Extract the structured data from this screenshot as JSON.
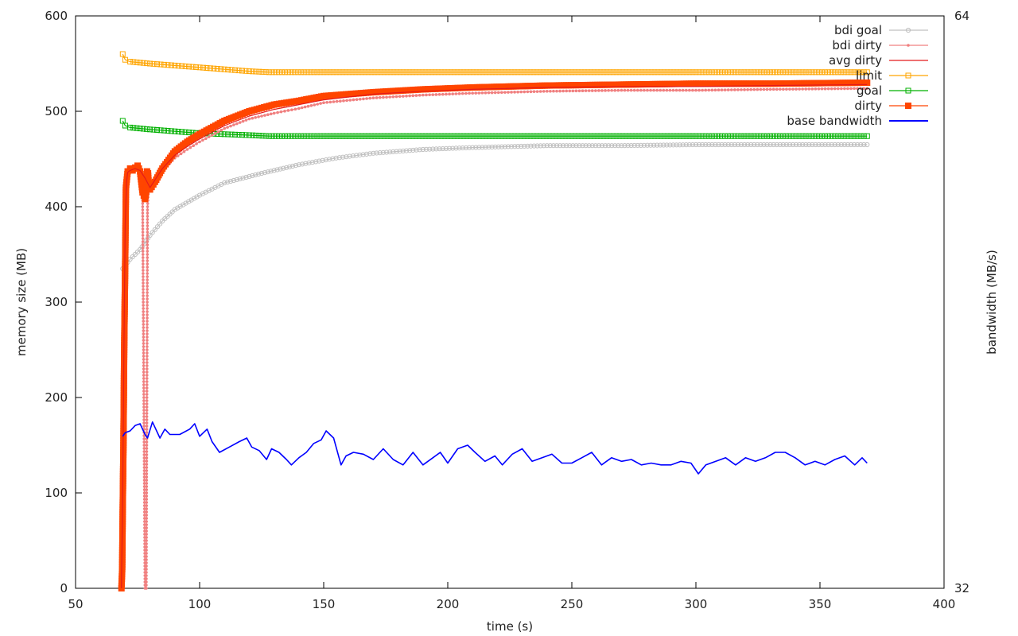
{
  "chart_data": {
    "type": "line",
    "xlabel": "time (s)",
    "ylabel": "memory size (MB)",
    "y2label": "bandwidth (MB/s)",
    "xlim": [
      50,
      400
    ],
    "ylim": [
      0,
      600
    ],
    "y2lim": [
      32,
      64
    ],
    "x_ticks": [
      "50",
      "100",
      "150",
      "200",
      "250",
      "300",
      "350",
      "400"
    ],
    "y_ticks": [
      "0",
      "100",
      "200",
      "300",
      "400",
      "500",
      "600"
    ],
    "y2_ticks": [
      "32",
      "64"
    ],
    "grid": false,
    "legend_position": "top-right",
    "series": [
      {
        "name": "bdi goal",
        "color": "#c0c0c0",
        "marker": "circle",
        "x": [
          69,
          72,
          76,
          80,
          85,
          90,
          100,
          110,
          125,
          140,
          155,
          170,
          190,
          210,
          240,
          270,
          300,
          330,
          369
        ],
        "y": [
          335,
          345,
          355,
          370,
          385,
          397,
          412,
          425,
          435,
          444,
          451,
          456,
          460,
          462,
          464,
          464,
          465,
          465,
          465
        ]
      },
      {
        "name": "bdi dirty",
        "color": "#f08080",
        "marker": "dot",
        "x": [
          68.5,
          69,
          69.5,
          70,
          70.5,
          71,
          72,
          74,
          76,
          77,
          78,
          78.5,
          79,
          79.5,
          80,
          82,
          85,
          90,
          95,
          100,
          110,
          120,
          130,
          140,
          150,
          170,
          190,
          210,
          240,
          270,
          300,
          330,
          369
        ],
        "y": [
          0,
          80,
          200,
          330,
          420,
          435,
          437,
          438,
          436,
          420,
          0,
          0,
          400,
          420,
          418,
          426,
          437,
          451,
          460,
          468,
          482,
          492,
          498,
          503,
          509,
          514,
          517,
          519,
          521,
          522,
          522,
          523,
          524
        ]
      },
      {
        "name": "avg dirty",
        "color": "#e31a1c",
        "marker": "none",
        "x": [
          68.5,
          69,
          69.5,
          70,
          70.5,
          71,
          72,
          74,
          76,
          78,
          80,
          82,
          85,
          90,
          95,
          100,
          110,
          120,
          130,
          140,
          150,
          170,
          190,
          210,
          240,
          270,
          300,
          330,
          369
        ],
        "y": [
          0,
          100,
          250,
          380,
          425,
          436,
          438,
          440,
          438,
          430,
          420,
          428,
          440,
          454,
          463,
          471,
          485,
          495,
          502,
          507,
          512,
          518,
          521,
          523,
          525,
          526,
          526,
          527,
          528
        ]
      },
      {
        "name": "limit",
        "color": "#ffa500",
        "marker": "square-open",
        "x": [
          69,
          70,
          72,
          80,
          90,
          100,
          110,
          120,
          128,
          150,
          200,
          250,
          300,
          369
        ],
        "y": [
          560,
          554,
          552,
          550,
          548,
          546,
          544,
          542,
          541,
          541,
          541,
          541,
          541,
          541
        ]
      },
      {
        "name": "goal",
        "color": "#00b000",
        "marker": "square-open",
        "x": [
          69,
          70,
          72,
          80,
          90,
          100,
          110,
          120,
          128,
          150,
          200,
          250,
          300,
          369
        ],
        "y": [
          490,
          485,
          483,
          481,
          479,
          477,
          476,
          475,
          474,
          474,
          474,
          474,
          474,
          474
        ]
      },
      {
        "name": "dirty",
        "color": "#ff4500",
        "marker": "square-filled",
        "x": [
          68.5,
          68.8,
          69,
          69.3,
          69.6,
          70,
          70.3,
          71,
          72,
          73,
          74,
          75,
          76,
          77,
          78,
          78.4,
          78.8,
          79.2,
          79.6,
          80,
          82,
          85,
          90,
          95,
          100,
          110,
          120,
          130,
          140,
          150,
          170,
          190,
          210,
          240,
          270,
          300,
          330,
          369
        ],
        "y": [
          0,
          20,
          80,
          150,
          250,
          340,
          420,
          437,
          440,
          438,
          441,
          443,
          437,
          415,
          408,
          415,
          437,
          435,
          420,
          418,
          426,
          440,
          458,
          468,
          476,
          490,
          500,
          507,
          511,
          516,
          520,
          523,
          525,
          527,
          528,
          529,
          529,
          530
        ]
      },
      {
        "name": "base bandwidth",
        "color": "#0000ff",
        "marker": "none",
        "axis": "y2",
        "x": [
          69,
          70,
          72,
          74,
          76,
          78,
          79,
          81,
          84,
          86,
          88,
          92,
          96,
          98,
          100,
          103,
          105,
          108,
          112,
          116,
          119,
          121,
          124,
          127,
          129,
          132,
          135,
          137,
          140,
          143,
          146,
          149,
          151,
          154,
          157,
          159,
          162,
          166,
          170,
          174,
          178,
          182,
          186,
          190,
          194,
          197,
          200,
          204,
          208,
          211,
          215,
          219,
          222,
          226,
          230,
          234,
          238,
          242,
          246,
          250,
          254,
          258,
          262,
          266,
          270,
          274,
          278,
          282,
          286,
          290,
          294,
          298,
          301,
          304,
          308,
          312,
          316,
          320,
          324,
          328,
          332,
          336,
          340,
          344,
          348,
          352,
          356,
          360,
          364,
          367,
          369
        ],
        "y": [
          40.5,
          40.7,
          40.8,
          41.1,
          41.2,
          40.6,
          40.4,
          41.3,
          40.4,
          40.9,
          40.6,
          40.6,
          40.9,
          41.2,
          40.5,
          40.9,
          40.2,
          39.6,
          39.9,
          40.2,
          40.4,
          39.9,
          39.7,
          39.2,
          39.8,
          39.6,
          39.2,
          38.9,
          39.3,
          39.6,
          40.1,
          40.3,
          40.8,
          40.4,
          38.9,
          39.4,
          39.6,
          39.5,
          39.2,
          39.8,
          39.2,
          38.9,
          39.6,
          38.9,
          39.3,
          39.6,
          39.0,
          39.8,
          40.0,
          39.6,
          39.1,
          39.4,
          38.9,
          39.5,
          39.8,
          39.1,
          39.3,
          39.5,
          39.0,
          39.0,
          39.3,
          39.6,
          38.9,
          39.3,
          39.1,
          39.2,
          38.9,
          39.0,
          38.9,
          38.9,
          39.1,
          39.0,
          38.4,
          38.9,
          39.1,
          39.3,
          38.9,
          39.3,
          39.1,
          39.3,
          39.6,
          39.6,
          39.3,
          38.9,
          39.1,
          38.9,
          39.2,
          39.4,
          38.9,
          39.3,
          39.0
        ]
      }
    ]
  }
}
